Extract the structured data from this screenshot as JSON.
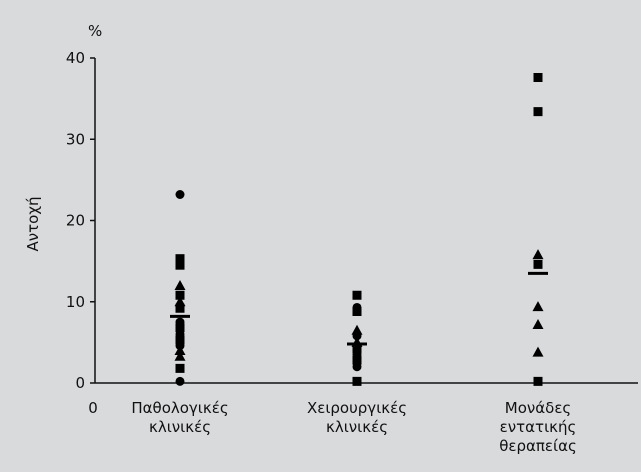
{
  "chart_data": {
    "type": "scatter",
    "unit_label": "%",
    "ylabel": "Αντοχή",
    "origin_label": "0",
    "ylim": [
      0,
      40
    ],
    "yticks": [
      0,
      10,
      20,
      30,
      40
    ],
    "categories": [
      {
        "lines": [
          "Παθολογικές",
          "κλινικές"
        ]
      },
      {
        "lines": [
          "Χειρουργικές",
          "κλινικές"
        ]
      },
      {
        "lines": [
          "Μονάδες",
          "εντατικής",
          "θεραπείας"
        ]
      }
    ],
    "groups": [
      {
        "median": 8.2,
        "points": [
          {
            "y": 23.2,
            "marker": "circle"
          },
          {
            "y": 15.3,
            "marker": "square"
          },
          {
            "y": 14.5,
            "marker": "square"
          },
          {
            "y": 12.0,
            "marker": "triangle"
          },
          {
            "y": 10.8,
            "marker": "square"
          },
          {
            "y": 10.0,
            "marker": "triangle"
          },
          {
            "y": 9.2,
            "marker": "square"
          },
          {
            "y": 7.5,
            "marker": "circle"
          },
          {
            "y": 6.8,
            "marker": "square"
          },
          {
            "y": 6.0,
            "marker": "circle"
          },
          {
            "y": 5.3,
            "marker": "square"
          },
          {
            "y": 4.6,
            "marker": "circle"
          },
          {
            "y": 4.0,
            "marker": "triangle"
          },
          {
            "y": 3.3,
            "marker": "triangle"
          },
          {
            "y": 1.8,
            "marker": "square"
          },
          {
            "y": 0.2,
            "marker": "circle"
          }
        ]
      },
      {
        "median": 4.8,
        "points": [
          {
            "y": 10.8,
            "marker": "square"
          },
          {
            "y": 9.3,
            "marker": "circle"
          },
          {
            "y": 8.8,
            "marker": "square"
          },
          {
            "y": 6.5,
            "marker": "triangle"
          },
          {
            "y": 5.8,
            "marker": "circle"
          },
          {
            "y": 5.0,
            "marker": "triangle"
          },
          {
            "y": 4.2,
            "marker": "square"
          },
          {
            "y": 3.5,
            "marker": "circle"
          },
          {
            "y": 2.8,
            "marker": "square"
          },
          {
            "y": 2.0,
            "marker": "circle"
          },
          {
            "y": 0.2,
            "marker": "square"
          }
        ]
      },
      {
        "median": 13.5,
        "points": [
          {
            "y": 37.6,
            "marker": "square"
          },
          {
            "y": 33.4,
            "marker": "square"
          },
          {
            "y": 15.8,
            "marker": "triangle"
          },
          {
            "y": 14.6,
            "marker": "square"
          },
          {
            "y": 9.4,
            "marker": "triangle"
          },
          {
            "y": 7.2,
            "marker": "triangle"
          },
          {
            "y": 3.8,
            "marker": "triangle"
          },
          {
            "y": 0.2,
            "marker": "square"
          }
        ]
      }
    ]
  }
}
